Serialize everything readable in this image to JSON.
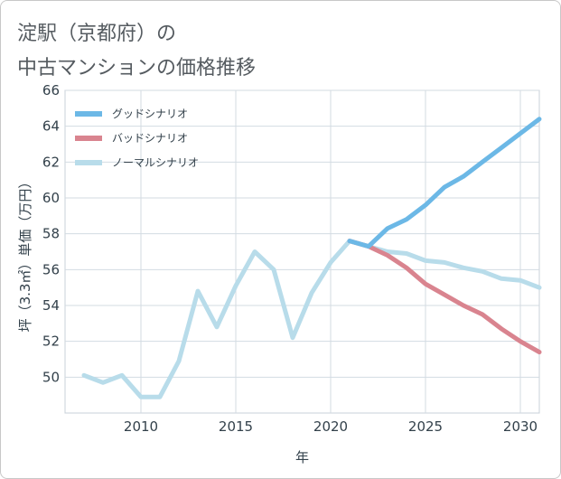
{
  "header": {
    "title_line1": "淀駅（京都府）の",
    "title_line2": "中古マンションの価格推移"
  },
  "chart_data": {
    "type": "line",
    "xlabel": "年",
    "ylabel": "坪（3.3㎡）単価（万円）",
    "xlim": [
      2006,
      2031
    ],
    "ylim": [
      48,
      66
    ],
    "x_ticks": [
      2010,
      2015,
      2020,
      2025,
      2030
    ],
    "y_ticks": [
      50,
      52,
      54,
      56,
      58,
      60,
      62,
      64,
      66
    ],
    "grid": true,
    "legend_position": "top-left",
    "series": [
      {
        "name": "グッドシナリオ",
        "color": "#6cb8e6",
        "x": [
          2021,
          2022,
          2023,
          2024,
          2025,
          2026,
          2027,
          2028,
          2029,
          2030,
          2031
        ],
        "y": [
          57.6,
          57.3,
          58.3,
          58.8,
          59.6,
          60.6,
          61.2,
          62.0,
          62.8,
          63.6,
          64.4
        ]
      },
      {
        "name": "バッドシナリオ",
        "color": "#d9848f",
        "x": [
          2021,
          2022,
          2023,
          2024,
          2025,
          2026,
          2027,
          2028,
          2029,
          2030,
          2031
        ],
        "y": [
          57.6,
          57.3,
          56.8,
          56.1,
          55.2,
          54.6,
          54.0,
          53.5,
          52.7,
          52.0,
          51.4
        ]
      },
      {
        "name": "ノーマルシナリオ",
        "color": "#b8dcea",
        "x": [
          2007,
          2008,
          2009,
          2010,
          2011,
          2012,
          2013,
          2014,
          2015,
          2016,
          2017,
          2018,
          2019,
          2020,
          2021,
          2022,
          2023,
          2024,
          2025,
          2026,
          2027,
          2028,
          2029,
          2030,
          2031
        ],
        "y": [
          50.1,
          49.7,
          50.1,
          48.9,
          48.9,
          50.9,
          54.8,
          52.8,
          55.1,
          57.0,
          56.0,
          52.2,
          54.7,
          56.4,
          57.6,
          57.3,
          57.0,
          56.9,
          56.5,
          56.4,
          56.1,
          55.9,
          55.5,
          55.4,
          55.0
        ]
      }
    ]
  }
}
